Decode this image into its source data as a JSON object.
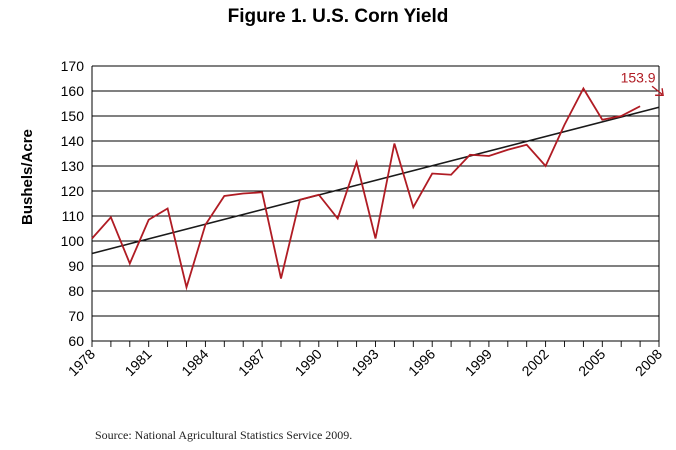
{
  "title": "Figure 1. U.S. Corn Yield",
  "source": "Source: National Agricultural Statistics Service 2009.",
  "colors": {
    "series": "#b01c24",
    "trend": "#1a1a1a",
    "grid": "#000000"
  },
  "chart_data": {
    "type": "line",
    "title": "Figure 1. U.S. Corn Yield",
    "xlabel": "",
    "ylabel": "Bushels/Acre",
    "xlim": [
      1978,
      2008
    ],
    "ylim": [
      60,
      170
    ],
    "yticks": [
      60,
      70,
      80,
      90,
      100,
      110,
      120,
      130,
      140,
      150,
      160,
      170
    ],
    "xticks": [
      1978,
      1981,
      1984,
      1987,
      1990,
      1993,
      1996,
      1999,
      2002,
      2005,
      2008
    ],
    "grid": true,
    "series": [
      {
        "x": [
          1978,
          1979,
          1980,
          1981,
          1982,
          1983,
          1984,
          1985,
          1986,
          1987,
          1988,
          1989,
          1990,
          1991,
          1992,
          1993,
          1994,
          1995,
          1996,
          1997,
          1998,
          1999,
          2000,
          2001,
          2002,
          2003,
          2004,
          2005,
          2006,
          2007
        ],
        "values": [
          101,
          109.5,
          91,
          108.5,
          113,
          81.5,
          106.5,
          118,
          119,
          119.5,
          85,
          116.5,
          118.5,
          109,
          131.5,
          101,
          139,
          113.5,
          127,
          126.5,
          134.5,
          134,
          136.5,
          138.5,
          130,
          146.5,
          161,
          148.5,
          150,
          153.9
        ]
      },
      {
        "x": [
          1978,
          2008
        ],
        "values": [
          95,
          153.5
        ]
      }
    ],
    "annotations": [
      {
        "text": "153.9",
        "x": 2007,
        "y": 153.9
      }
    ]
  }
}
